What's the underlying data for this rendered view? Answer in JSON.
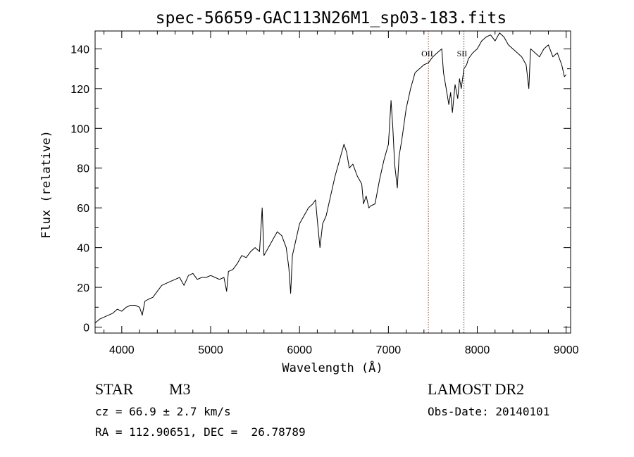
{
  "chart_data": {
    "type": "line",
    "title": "spec-56659-GAC113N26M1_sp03-183.fits",
    "xlabel": "Wavelength (Å)",
    "ylabel": "Flux (relative)",
    "xlim": [
      3700,
      9050
    ],
    "ylim": [
      -3,
      149
    ],
    "x_ticks": [
      4000,
      5000,
      6000,
      7000,
      8000,
      9000
    ],
    "y_ticks": [
      0,
      20,
      40,
      60,
      80,
      100,
      120,
      140
    ],
    "x_tick_labels": [
      "4000",
      "5000",
      "6000",
      "7000",
      "8000",
      "9000"
    ],
    "y_tick_labels": [
      "0",
      "20",
      "40",
      "60",
      "80",
      "100",
      "120",
      "140"
    ],
    "grid": false,
    "line_color": "#000000",
    "series": [
      {
        "x": [
          3700,
          3750,
          3800,
          3850,
          3900,
          3950,
          4000,
          4050,
          4100,
          4150,
          4200,
          4230,
          4260,
          4300,
          4350,
          4400,
          4450,
          4500,
          4550,
          4600,
          4650,
          4700,
          4750,
          4800,
          4850,
          4900,
          4950,
          5000,
          5050,
          5100,
          5150,
          5180,
          5200,
          5250,
          5300,
          5350,
          5400,
          5450,
          5500,
          5550,
          5580,
          5600,
          5650,
          5700,
          5750,
          5800,
          5850,
          5880,
          5900,
          5920,
          5950,
          6000,
          6050,
          6100,
          6150,
          6180,
          6200,
          6230,
          6260,
          6300,
          6350,
          6400,
          6450,
          6500,
          6530,
          6560,
          6600,
          6650,
          6700,
          6720,
          6750,
          6780,
          6800,
          6850,
          6900,
          6950,
          7000,
          7030,
          7050,
          7070,
          7100,
          7120,
          7150,
          7200,
          7250,
          7300,
          7350,
          7400,
          7450,
          7500,
          7550,
          7600,
          7620,
          7650,
          7680,
          7700,
          7720,
          7750,
          7780,
          7800,
          7820,
          7850,
          7880,
          7900,
          7950,
          8000,
          8050,
          8100,
          8150,
          8200,
          8250,
          8300,
          8350,
          8400,
          8450,
          8500,
          8550,
          8580,
          8600,
          8650,
          8700,
          8750,
          8800,
          8850,
          8900,
          8950,
          8980,
          9000
        ],
        "y": [
          2,
          4,
          5,
          6,
          7,
          9,
          8,
          10,
          11,
          11,
          10,
          6,
          13,
          14,
          15,
          18,
          21,
          22,
          23,
          24,
          25,
          21,
          26,
          27,
          24,
          25,
          25,
          26,
          25,
          24,
          25,
          18,
          28,
          29,
          32,
          36,
          35,
          38,
          40,
          38,
          60,
          36,
          40,
          44,
          48,
          46,
          40,
          30,
          17,
          36,
          42,
          52,
          56,
          60,
          62,
          64,
          54,
          40,
          52,
          56,
          66,
          76,
          84,
          92,
          88,
          80,
          82,
          76,
          72,
          62,
          66,
          60,
          61,
          62,
          74,
          84,
          92,
          114,
          100,
          82,
          70,
          86,
          94,
          110,
          120,
          128,
          130,
          132,
          133,
          136,
          138,
          140,
          128,
          120,
          112,
          118,
          108,
          122,
          115,
          125,
          120,
          130,
          132,
          135,
          138,
          140,
          144,
          146,
          147,
          144,
          148,
          146,
          142,
          140,
          138,
          136,
          132,
          120,
          140,
          138,
          136,
          140,
          142,
          136,
          138,
          132,
          126,
          127
        ]
      }
    ],
    "reference_lines": [
      {
        "x": 7450,
        "label": "OII",
        "color": "#b03030"
      },
      {
        "x": 7850,
        "label": "SII",
        "color": "#303030"
      }
    ]
  },
  "info": {
    "object_class": "STAR",
    "subclass": "M3",
    "survey": "LAMOST DR2",
    "cz": "cz = 66.9 ± 2.7 km/s",
    "obs_date": "Obs-Date: 20140101",
    "coords": "RA = 112.90651, DEC =  26.78789"
  }
}
